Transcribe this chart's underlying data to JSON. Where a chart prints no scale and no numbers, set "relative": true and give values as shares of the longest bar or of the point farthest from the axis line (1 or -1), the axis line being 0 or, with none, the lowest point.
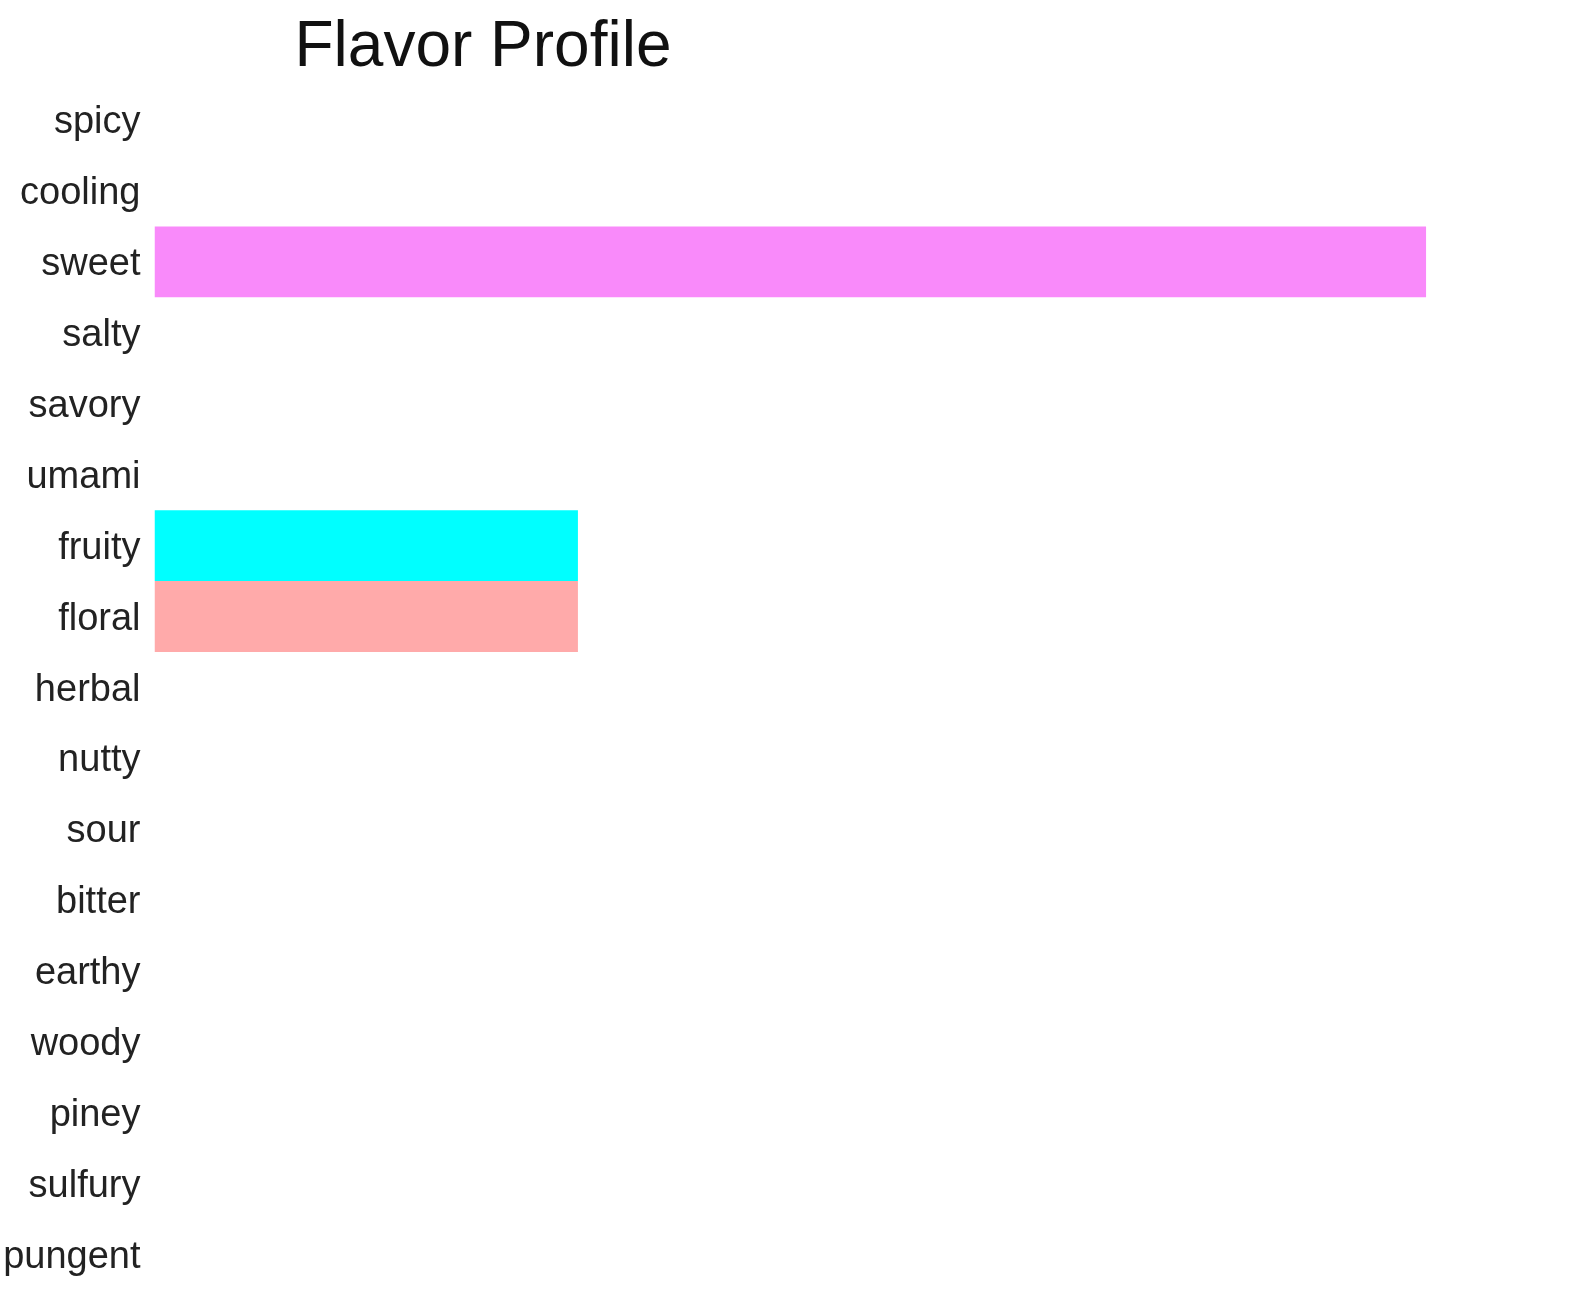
{
  "chart_data": {
    "type": "bar",
    "title": "Flavor Profile",
    "orientation": "horizontal",
    "relative": true,
    "categories": [
      "spicy",
      "cooling",
      "sweet",
      "salty",
      "savory",
      "umami",
      "fruity",
      "floral",
      "herbal",
      "nutty",
      "sour",
      "bitter",
      "earthy",
      "woody",
      "piney",
      "sulfury",
      "pungent"
    ],
    "values": [
      0,
      0,
      1,
      0,
      0,
      0,
      0.333,
      0.333,
      0,
      0,
      0,
      0,
      0,
      0,
      0,
      0,
      0
    ],
    "colors": [
      null,
      null,
      "#f98afa",
      null,
      null,
      null,
      "#00ffff",
      "#ffaaaa",
      null,
      null,
      null,
      null,
      null,
      null,
      null,
      null,
      null
    ]
  }
}
